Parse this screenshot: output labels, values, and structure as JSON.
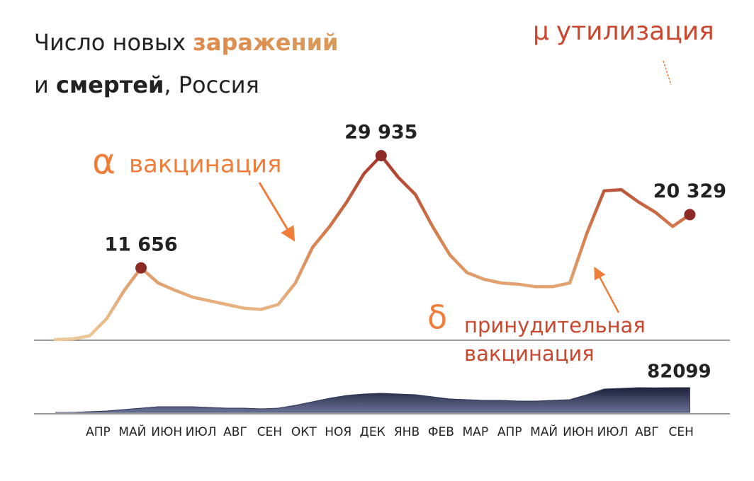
{
  "chart_data": {
    "type": "line",
    "title": {
      "line1": [
        "Число новых ",
        "заражений"
      ],
      "line2": [
        "и ",
        "смертей",
        ", Россия"
      ]
    },
    "categories": [
      null,
      null,
      "АПР",
      null,
      "МАЙ",
      null,
      "ИЮН",
      null,
      "ИЮЛ",
      null,
      "АВГ",
      null,
      "СЕН",
      null,
      "ОКТ",
      null,
      "НОЯ",
      null,
      "ДЕК",
      null,
      "ЯНВ",
      null,
      "ФЕВ",
      null,
      "МАР",
      null,
      "АПР",
      null,
      "МАЙ",
      null,
      "ИЮН",
      null,
      "ИЮЛ",
      null,
      "АВГ",
      null,
      "СЕН",
      null
    ],
    "series": [
      {
        "type": "line",
        "color": "#a8362a",
        "color_low": "#ecc998",
        "values": [
          0,
          100,
          600,
          3400,
          7900,
          11656,
          9200,
          8000,
          6900,
          6300,
          5700,
          5100,
          4900,
          5700,
          9200,
          15000,
          18400,
          22400,
          27000,
          29935,
          26400,
          23600,
          18400,
          13800,
          10900,
          9800,
          9200,
          9000,
          8600,
          8600,
          9200,
          17300,
          24200,
          24400,
          22400,
          20700,
          18400,
          20329
        ],
        "value_labels": [
          null,
          null,
          null,
          null,
          null,
          "11 656",
          null,
          null,
          null,
          null,
          null,
          null,
          null,
          null,
          null,
          null,
          null,
          null,
          null,
          "29 935",
          null,
          null,
          null,
          null,
          null,
          null,
          null,
          null,
          null,
          null,
          null,
          null,
          null,
          null,
          null,
          null,
          null,
          "20 329"
        ]
      },
      {
        "type": "area",
        "color": "#2f3758",
        "values": [
          0,
          0,
          2300,
          4700,
          9400,
          14000,
          18800,
          18800,
          18800,
          16400,
          14000,
          14000,
          11700,
          14000,
          23500,
          35200,
          46900,
          56300,
          61000,
          63300,
          61000,
          58600,
          51600,
          44600,
          42200,
          39900,
          39900,
          37500,
          37500,
          39900,
          42200,
          58600,
          77400,
          79800,
          82000,
          81500,
          82000,
          82099
        ],
        "value_labels": [
          null,
          null,
          null,
          null,
          null,
          null,
          null,
          null,
          null,
          null,
          null,
          null,
          null,
          null,
          null,
          null,
          null,
          null,
          null,
          null,
          null,
          null,
          null,
          null,
          null,
          null,
          null,
          null,
          null,
          null,
          null,
          null,
          null,
          null,
          null,
          null,
          null,
          "82099"
        ]
      }
    ],
    "ylim": [
      0,
      29935
    ],
    "y2lim": [
      0,
      82099
    ],
    "annotations": [
      {
        "symbol": "α",
        "text": [
          "вакцинация"
        ]
      },
      {
        "symbol": "δ",
        "text": [
          "принудительная",
          "вакцинация"
        ]
      },
      {
        "symbol": "μ",
        "text": [
          "утилизация"
        ]
      }
    ]
  }
}
